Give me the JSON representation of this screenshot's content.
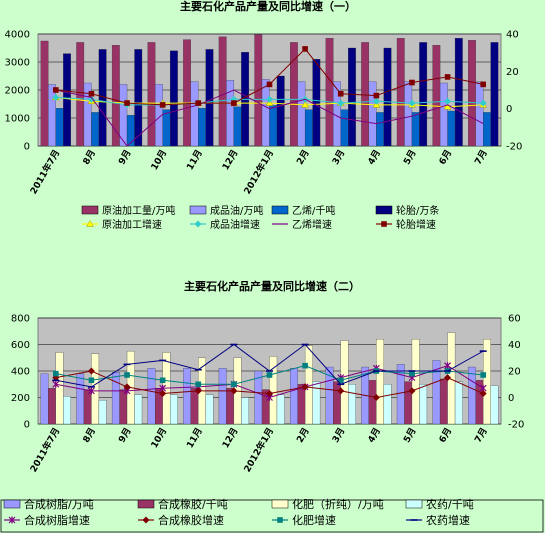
{
  "colors": {
    "page_bg": "#ccffcc",
    "plot_bg": "#c0c0c0",
    "grid": "#000000"
  },
  "chart_data": [
    {
      "type": "bar",
      "title": "主要石化产品产量及同比增速（一）",
      "categories": [
        "2011年7月",
        "8月",
        "9月",
        "10月",
        "11月",
        "12月",
        "2012年1月",
        "2月",
        "3月",
        "4月",
        "5月",
        "6月",
        "7月"
      ],
      "y_left": {
        "min": 0,
        "max": 4000,
        "ticks": [
          0,
          1000,
          2000,
          3000,
          4000
        ]
      },
      "y_right": {
        "min": -20,
        "max": 40,
        "ticks": [
          -20,
          0,
          20,
          40
        ]
      },
      "grid": true,
      "legend_position": "bottom",
      "bar_series": [
        {
          "name": "原油加工量/万吨",
          "color": "#993366",
          "values": [
            3750,
            3700,
            3600,
            3700,
            3800,
            3900,
            3980,
            3700,
            3850,
            3700,
            3850,
            3600,
            3780
          ]
        },
        {
          "name": "成品油/万吨",
          "color": "#9999ff",
          "values": [
            2200,
            2250,
            2200,
            2200,
            2300,
            2350,
            2380,
            2300,
            2300,
            2300,
            2300,
            2250,
            2300
          ]
        },
        {
          "name": "乙烯/千吨",
          "color": "#0066cc",
          "values": [
            1350,
            1200,
            1100,
            1300,
            1350,
            1400,
            1450,
            1300,
            1300,
            1200,
            1200,
            1250,
            1200
          ]
        },
        {
          "name": "轮胎/万条",
          "color": "#000080",
          "values": [
            3300,
            3450,
            3450,
            3400,
            3450,
            3350,
            2500,
            3100,
            3500,
            3500,
            3700,
            3850,
            3700
          ]
        }
      ],
      "line_series": [
        {
          "name": "原油加工增速",
          "color": "#ffff00",
          "marker": "triangle",
          "values": [
            6,
            4,
            3,
            3,
            3,
            3,
            3,
            2,
            3,
            2,
            2,
            1,
            2
          ]
        },
        {
          "name": "成品油增速",
          "color": "#33cccc",
          "marker": "diamond",
          "values": [
            6,
            5,
            2,
            2,
            3,
            5,
            5,
            5,
            3,
            4,
            3,
            4,
            3
          ]
        },
        {
          "name": "乙烯增速",
          "color": "#800080",
          "marker": "none",
          "values": [
            10,
            6,
            -20,
            -3,
            2,
            10,
            0,
            5,
            -5,
            -8,
            -4,
            2,
            -8
          ]
        },
        {
          "name": "轮胎增速",
          "color": "#800000",
          "marker": "square",
          "values": [
            10,
            8,
            3,
            2,
            3,
            3,
            13,
            32,
            8,
            7,
            14,
            17,
            13
          ]
        }
      ]
    },
    {
      "type": "bar",
      "title": "主要石化产品产量及同比增速（二）",
      "categories": [
        "2011年7月",
        "8月",
        "9月",
        "10月",
        "11月",
        "12月",
        "2012年1月",
        "2月",
        "3月",
        "4月",
        "5月",
        "6月",
        "7月"
      ],
      "y_left": {
        "min": 0,
        "max": 800,
        "ticks": [
          0,
          200,
          400,
          600,
          800
        ]
      },
      "y_right": {
        "min": -20,
        "max": 60,
        "ticks": [
          -20,
          0,
          20,
          40,
          60
        ]
      },
      "grid": true,
      "legend_position": "bottom",
      "bar_series": [
        {
          "name": "合成树脂/万吨",
          "color": "#9999ff",
          "values": [
            380,
            380,
            390,
            420,
            420,
            420,
            400,
            420,
            430,
            430,
            450,
            480,
            430
          ]
        },
        {
          "name": "合成橡胶/千吨",
          "color": "#993366",
          "values": [
            270,
            260,
            260,
            270,
            270,
            270,
            260,
            300,
            320,
            330,
            320,
            340,
            330
          ]
        },
        {
          "name": "化肥（折纯）/万吨",
          "color": "#ffffcc",
          "values": [
            540,
            530,
            550,
            540,
            500,
            500,
            510,
            590,
            630,
            640,
            640,
            690,
            640
          ]
        },
        {
          "name": "农药/千吨",
          "color": "#ccffff",
          "values": [
            210,
            180,
            220,
            220,
            220,
            200,
            220,
            320,
            300,
            300,
            300,
            320,
            290
          ]
        }
      ],
      "line_series": [
        {
          "name": "合成树脂增速",
          "color": "#800080",
          "marker": "star",
          "values": [
            10,
            5,
            5,
            7,
            8,
            10,
            0,
            8,
            15,
            22,
            15,
            24,
            7
          ]
        },
        {
          "name": "合成橡胶增速",
          "color": "#800000",
          "marker": "diamond",
          "values": [
            15,
            20,
            8,
            3,
            5,
            5,
            3,
            8,
            5,
            0,
            5,
            15,
            3
          ]
        },
        {
          "name": "化肥增速",
          "color": "#008080",
          "marker": "square",
          "values": [
            18,
            13,
            17,
            13,
            10,
            10,
            17,
            24,
            13,
            20,
            18,
            20,
            17
          ]
        },
        {
          "name": "农药增速",
          "color": "#000080",
          "marker": "dash",
          "values": [
            13,
            8,
            25,
            28,
            21,
            40,
            20,
            40,
            10,
            20,
            20,
            20,
            35
          ]
        }
      ]
    }
  ]
}
